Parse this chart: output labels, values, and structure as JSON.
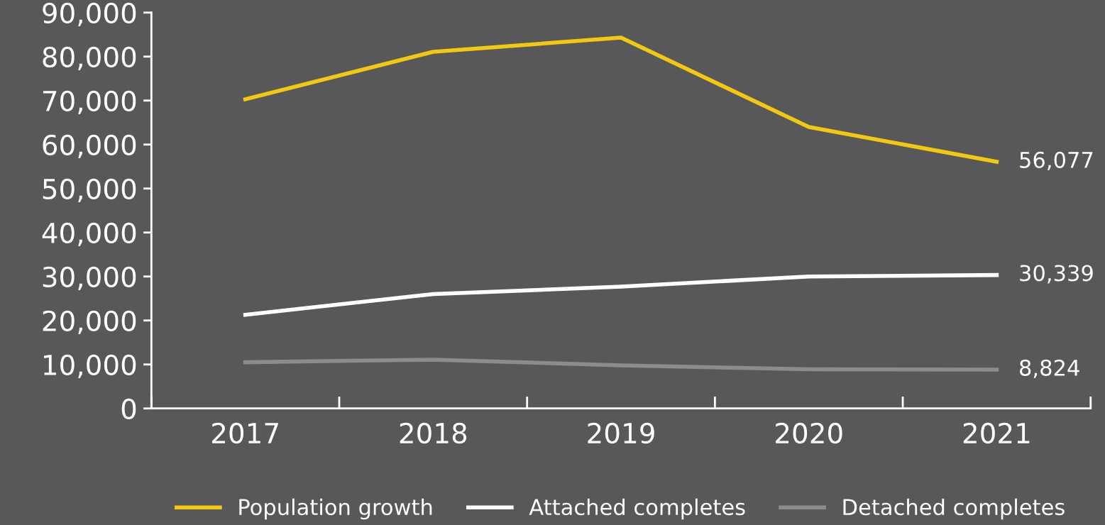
{
  "chart_data": {
    "type": "line",
    "categories": [
      "2017",
      "2018",
      "2019",
      "2020",
      "2021"
    ],
    "ylim": [
      0,
      90000
    ],
    "yticks": [
      {
        "value": 0,
        "label": "0"
      },
      {
        "value": 10000,
        "label": "10,000"
      },
      {
        "value": 20000,
        "label": "20,000"
      },
      {
        "value": 30000,
        "label": "30,000"
      },
      {
        "value": 40000,
        "label": "40,000"
      },
      {
        "value": 50000,
        "label": "50,000"
      },
      {
        "value": 60000,
        "label": "60,000"
      },
      {
        "value": 70000,
        "label": "70,000"
      },
      {
        "value": 80000,
        "label": "80,000"
      },
      {
        "value": 90000,
        "label": "90,000"
      }
    ],
    "series": [
      {
        "name": "Population growth",
        "color": "#f2c811",
        "values": [
          70300,
          81100,
          84300,
          64000,
          56077
        ],
        "value_labels": [
          null,
          null,
          null,
          null,
          "56,077"
        ]
      },
      {
        "name": "Attached completes",
        "color": "#ffffff",
        "values": [
          21300,
          26000,
          27700,
          30000,
          30339
        ],
        "value_labels": [
          null,
          null,
          null,
          null,
          "30,339"
        ]
      },
      {
        "name": "Detached completes",
        "color": "#8c8c8c",
        "values": [
          10500,
          11100,
          9800,
          8900,
          8824
        ],
        "value_labels": [
          null,
          null,
          null,
          null,
          "8,824"
        ]
      }
    ],
    "grid": false,
    "legend": "bottom",
    "marker": "none",
    "line_style": "solid"
  }
}
